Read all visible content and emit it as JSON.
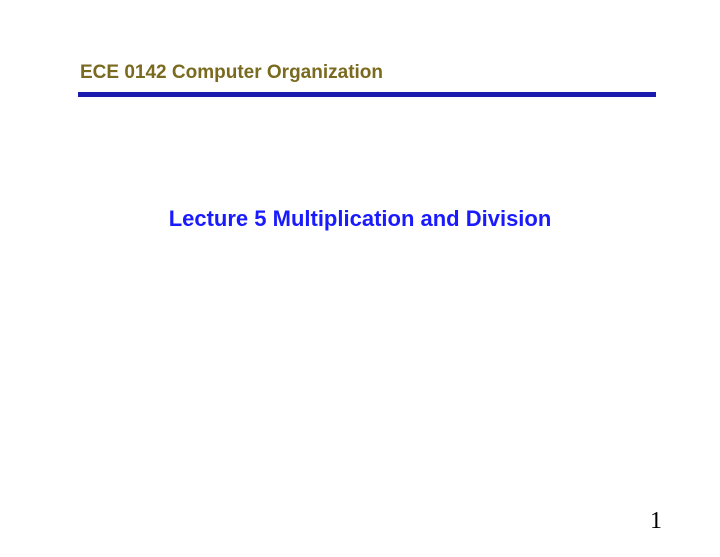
{
  "header": {
    "text": "ECE 0142 Computer Organization",
    "color": "#7a6a1f",
    "font_size": 19
  },
  "divider": {
    "color": "#1a1aaf",
    "thickness": 5
  },
  "title": {
    "text": "Lecture 5   Multiplication and Division",
    "color": "#1a1aff",
    "font_size": 22
  },
  "page_number": {
    "value": "1",
    "color": "#000000",
    "font_size": 24
  },
  "background_color": "#ffffff"
}
